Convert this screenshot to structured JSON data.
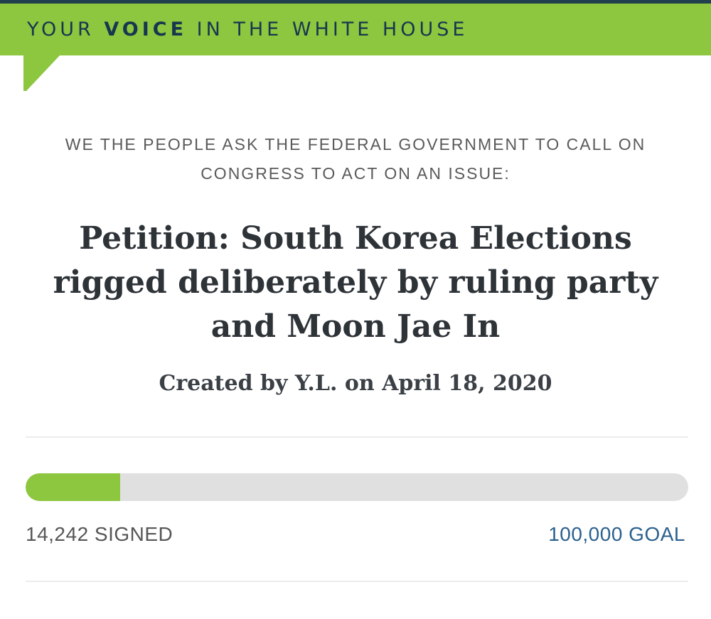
{
  "banner": {
    "prefix": "YOUR ",
    "bold": "VOICE",
    "suffix": " IN THE WHITE HOUSE"
  },
  "intro": {
    "lines": [
      "WE THE PEOPLE ASK THE FEDERAL GOVERNMENT TO CALL ON",
      "CONGRESS TO ACT ON AN ISSUE:"
    ]
  },
  "petition": {
    "title": "Petition: South Korea Elections rigged deliberately by ruling party and Moon Jae In",
    "title_lines": [
      "Petition: South Korea Elections",
      "rigged deliberately by ruling party",
      "and Moon Jae In"
    ],
    "byline": "Created by Y.L. on April 18, 2020"
  },
  "progress": {
    "signed_label": "14,242 SIGNED",
    "goal_label": "100,000 GOAL",
    "signed_count": "14,242",
    "goal_count": "100,000",
    "percent": 14.24
  },
  "colors": {
    "strip": "#21404d",
    "green": "#8dc63f",
    "navy": "#17374f",
    "track": "#e0e0e0",
    "goal_blue": "#2b608e"
  }
}
